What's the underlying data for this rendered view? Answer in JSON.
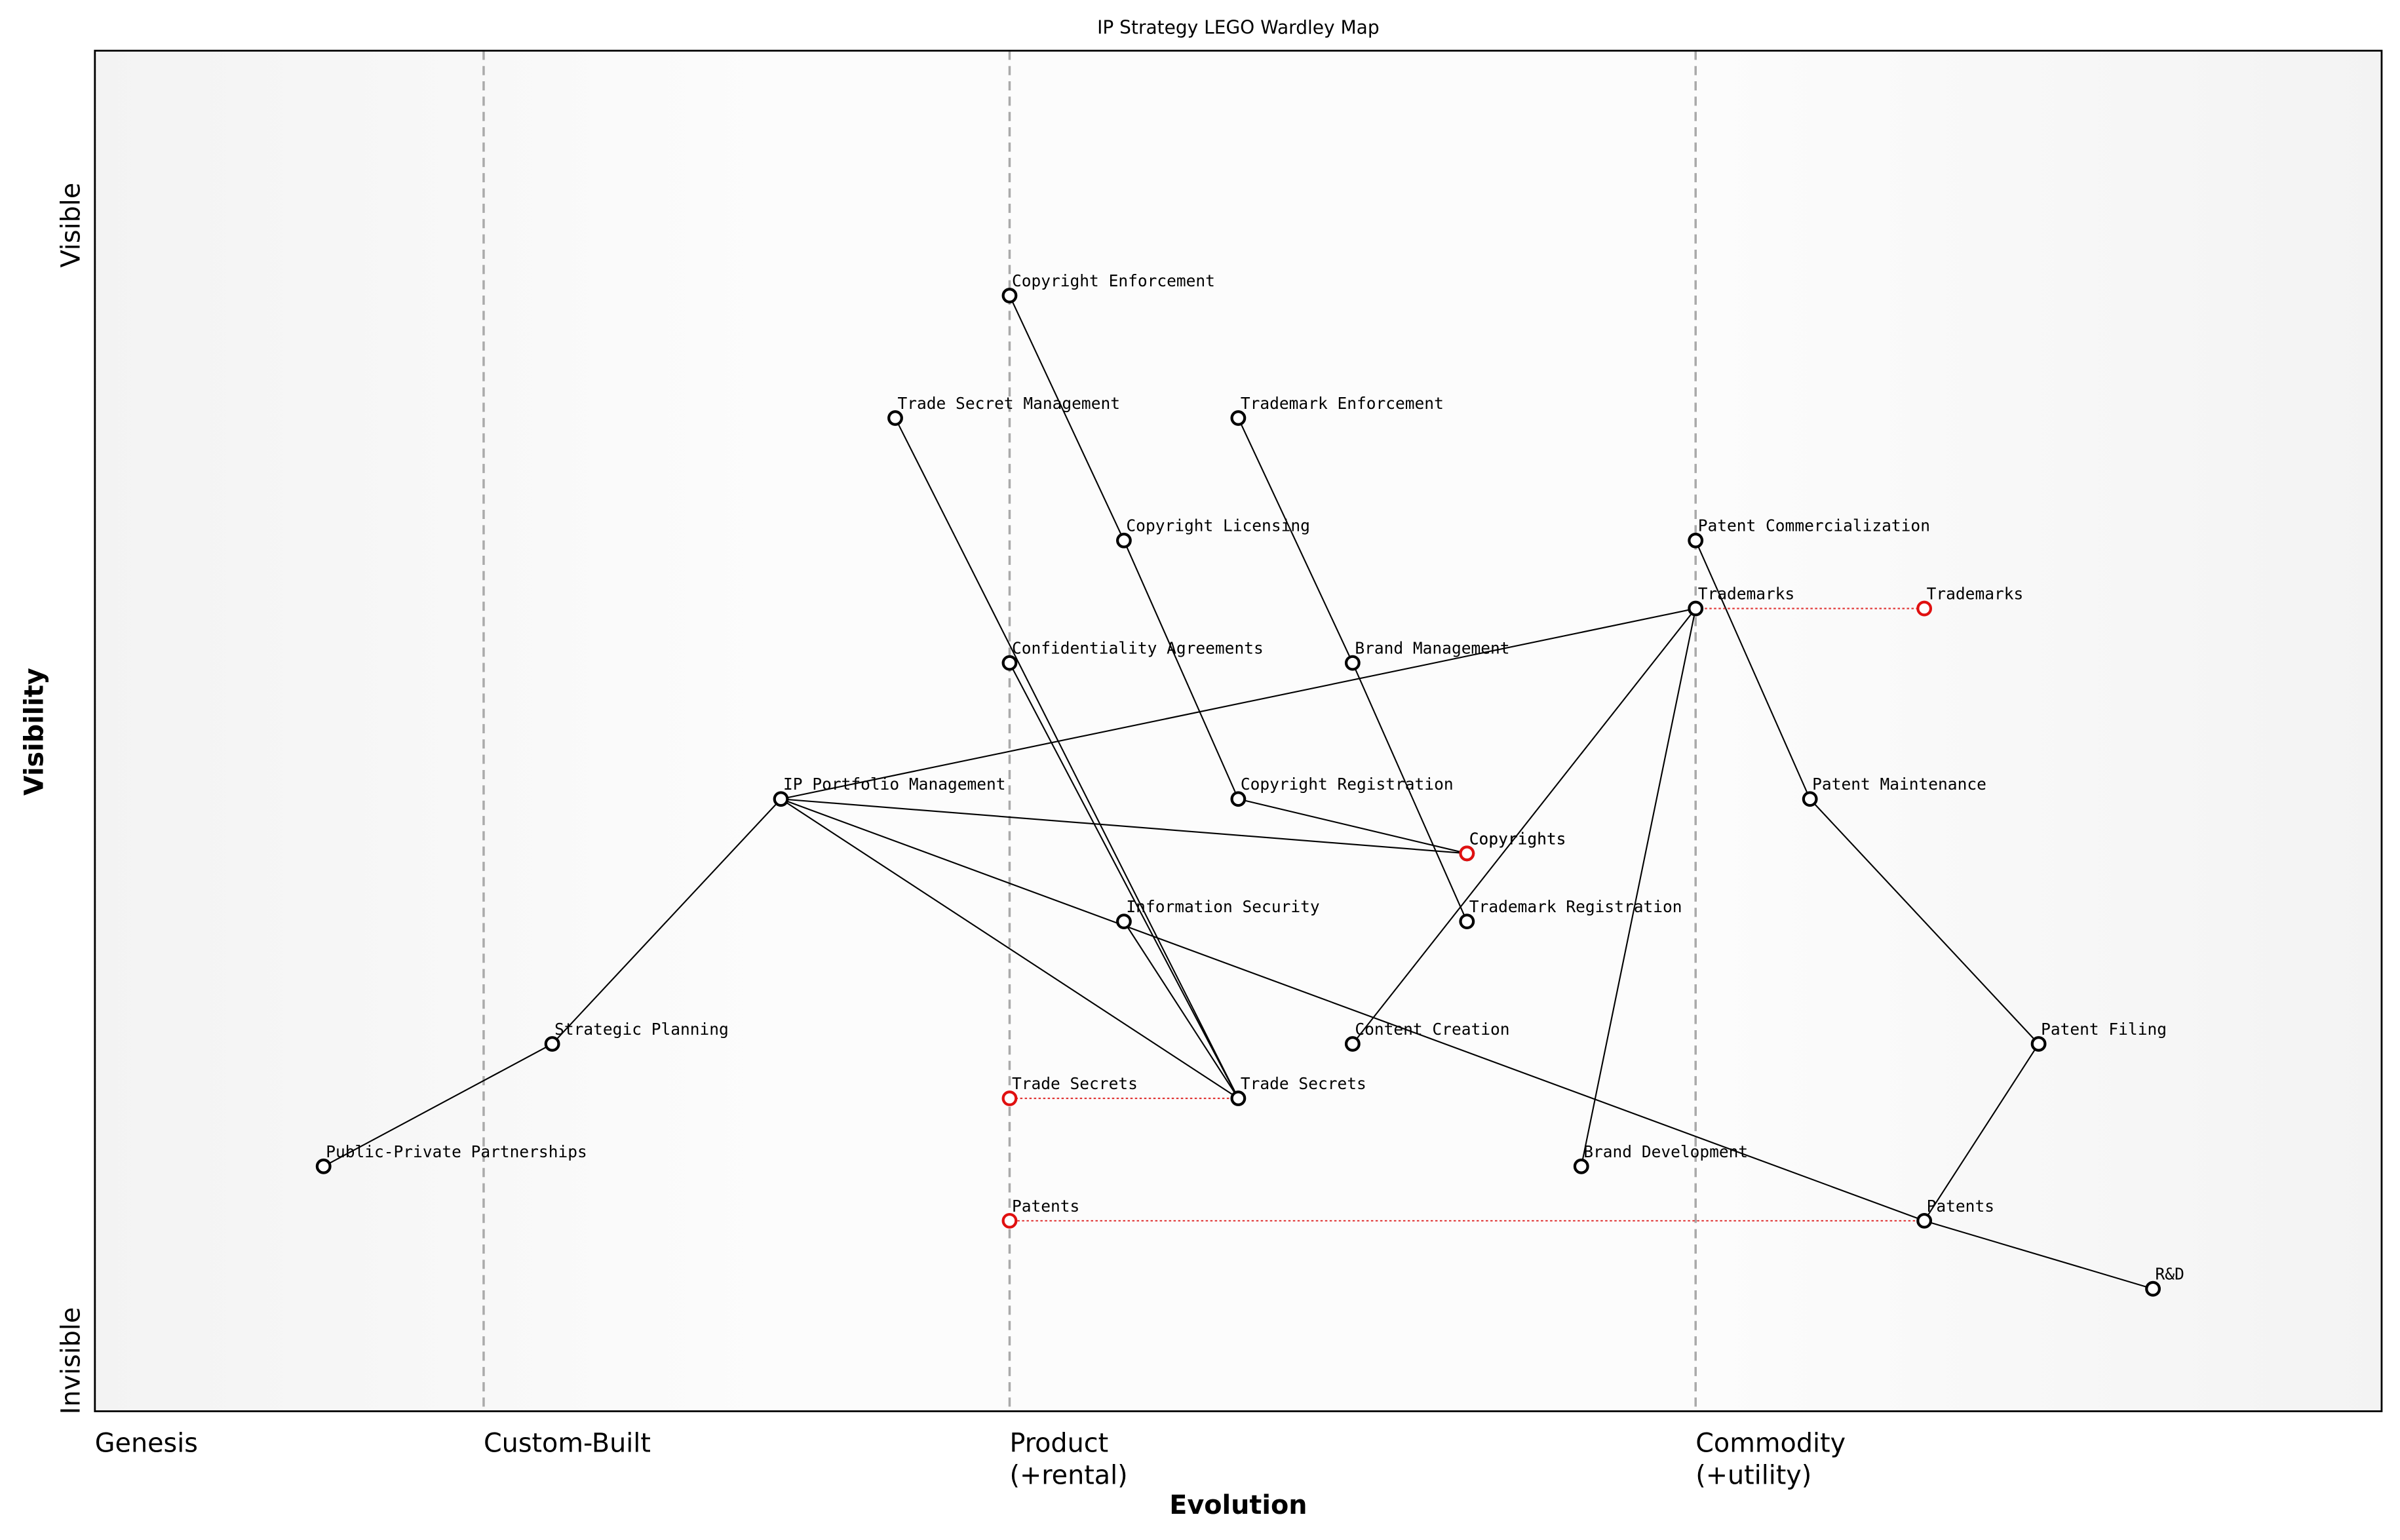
{
  "title": "IP Strategy LEGO Wardley Map",
  "x_label": "Evolution",
  "y_label": "Visibility",
  "y_top_label": "Visible",
  "y_bottom_label": "Invisible",
  "stages": [
    {
      "lines": [
        "Genesis"
      ],
      "evolution": 0
    },
    {
      "lines": [
        "Custom-Built"
      ],
      "evolution": 0.17
    },
    {
      "lines": [
        "Product",
        "(+rental)"
      ],
      "evolution": 0.4
    },
    {
      "lines": [
        "Commodity",
        "(+utility)"
      ],
      "evolution": 0.7
    }
  ],
  "nodes": [
    {
      "label": "Copyright Enforcement",
      "evolution": 0.4,
      "visibility": 0.82
    },
    {
      "label": "Trade Secret Management",
      "evolution": 0.35,
      "visibility": 0.73
    },
    {
      "label": "Trademark Enforcement",
      "evolution": 0.5,
      "visibility": 0.73
    },
    {
      "label": "Copyright Licensing",
      "evolution": 0.45,
      "visibility": 0.64
    },
    {
      "label": "Patent Commercialization",
      "evolution": 0.7,
      "visibility": 0.64
    },
    {
      "label": "Trademarks",
      "evolution": 0.7,
      "visibility": 0.59
    },
    {
      "label": "Confidentiality Agreements",
      "evolution": 0.4,
      "visibility": 0.55
    },
    {
      "label": "Brand Management",
      "evolution": 0.55,
      "visibility": 0.55
    },
    {
      "label": "IP Portfolio Management",
      "evolution": 0.3,
      "visibility": 0.45
    },
    {
      "label": "Copyright Registration",
      "evolution": 0.5,
      "visibility": 0.45
    },
    {
      "label": "Patent Maintenance",
      "evolution": 0.75,
      "visibility": 0.45
    },
    {
      "label": "Copyrights",
      "evolution": 0.6,
      "visibility": 0.41
    },
    {
      "label": "Information Security",
      "evolution": 0.45,
      "visibility": 0.36
    },
    {
      "label": "Trademark Registration",
      "evolution": 0.6,
      "visibility": 0.36
    },
    {
      "label": "Strategic Planning",
      "evolution": 0.2,
      "visibility": 0.27
    },
    {
      "label": "Content Creation",
      "evolution": 0.55,
      "visibility": 0.27
    },
    {
      "label": "Patent Filing",
      "evolution": 0.85,
      "visibility": 0.27
    },
    {
      "label": "Trade Secrets",
      "evolution": 0.5,
      "visibility": 0.23
    },
    {
      "label": "Public-Private Partnerships",
      "evolution": 0.1,
      "visibility": 0.18
    },
    {
      "label": "Brand Development",
      "evolution": 0.65,
      "visibility": 0.18
    },
    {
      "label": "Patents",
      "evolution": 0.8,
      "visibility": 0.14
    },
    {
      "label": "R&D",
      "evolution": 0.9,
      "visibility": 0.09
    }
  ],
  "edges": [
    [
      0,
      3
    ],
    [
      3,
      9
    ],
    [
      9,
      11
    ],
    [
      1,
      17
    ],
    [
      6,
      17
    ],
    [
      12,
      17
    ],
    [
      2,
      7
    ],
    [
      7,
      13
    ],
    [
      8,
      5
    ],
    [
      8,
      11
    ],
    [
      8,
      17
    ],
    [
      8,
      20
    ],
    [
      14,
      8
    ],
    [
      18,
      14
    ],
    [
      4,
      10
    ],
    [
      10,
      16
    ],
    [
      16,
      20
    ],
    [
      20,
      21
    ],
    [
      5,
      15
    ],
    [
      5,
      19
    ]
  ],
  "evolved": [
    {
      "label": "Trademarks",
      "from": 5,
      "evolution": 0.8,
      "visibility": 0.59
    },
    {
      "label": "Copyrights",
      "from": 11,
      "evolution": 0.6,
      "visibility": 0.41
    },
    {
      "label": "Trade Secrets",
      "from": 17,
      "evolution": 0.4,
      "visibility": 0.23
    },
    {
      "label": "Patents",
      "from": 20,
      "evolution": 0.4,
      "visibility": 0.14
    }
  ]
}
